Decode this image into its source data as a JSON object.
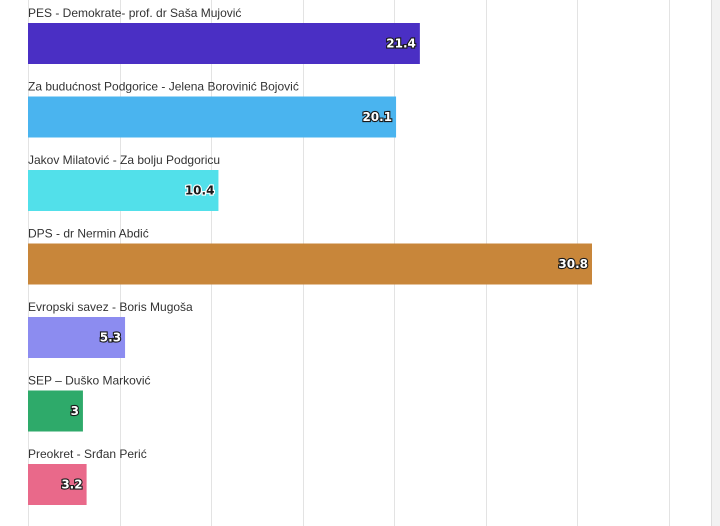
{
  "chart_data": {
    "type": "bar",
    "orientation": "horizontal",
    "categories": [
      "PES - Demokrate- prof. dr Saša Mujović",
      "Za budućnost Podgorice - Jelena Borovinić Bojović",
      "Jakov Milatović - Za bolju Podgoricu",
      "DPS - dr Nermin Abdić",
      "Evropski savez - Boris Mugoša",
      "SEP – Duško Marković",
      "Preokret - Srđan Perić"
    ],
    "values": [
      21.4,
      20.1,
      10.4,
      30.8,
      5.3,
      3,
      3.2
    ],
    "value_labels": [
      "21.4",
      "20.1",
      "10.4",
      "30.8",
      "5.3",
      "3",
      "3.2"
    ],
    "colors": [
      "#4a2fc4",
      "#4ab4ef",
      "#52e0ea",
      "#c8863a",
      "#8c8cf0",
      "#2eaa6a",
      "#e9698a"
    ],
    "label_colors": [
      "#ffffff",
      "#ffffff",
      "#1a1a1a",
      "#ffffff",
      "#ffffff",
      "#ffffff",
      "#ffffff"
    ],
    "xlim": [
      0,
      36
    ],
    "grid": true,
    "legend": "none",
    "title": "",
    "xlabel": "",
    "ylabel": ""
  }
}
